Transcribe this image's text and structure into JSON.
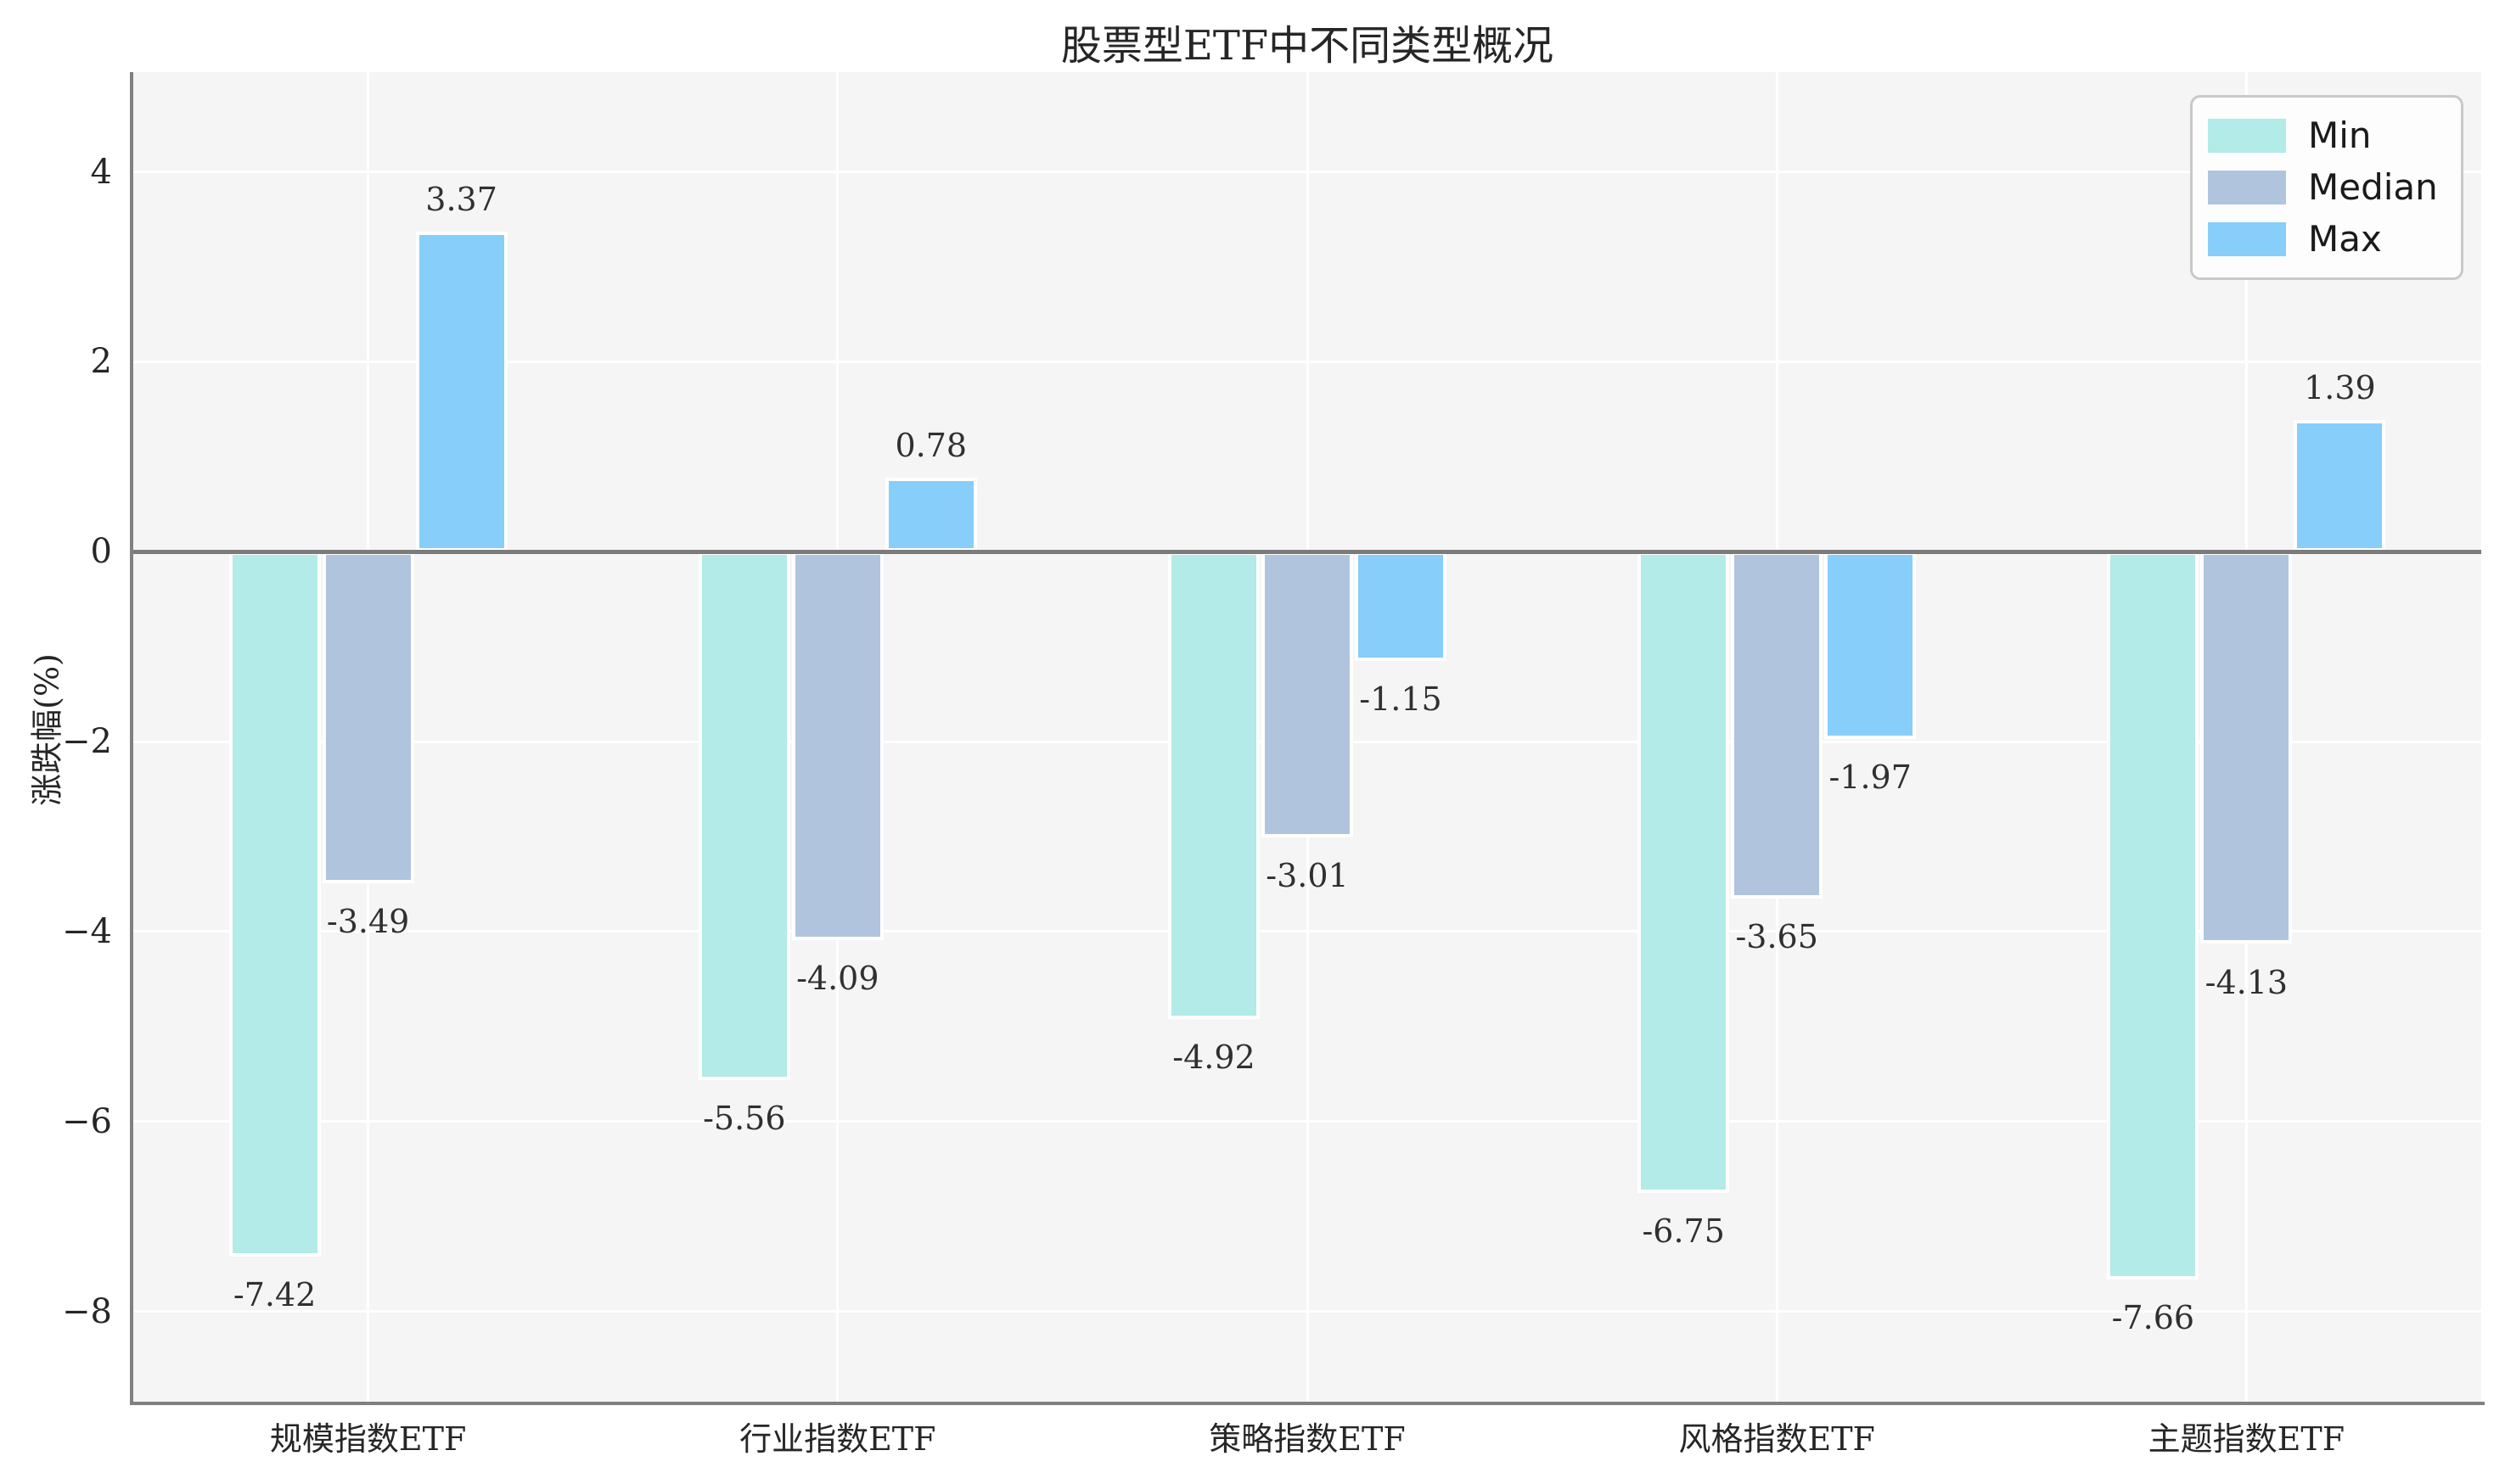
{
  "chart_data": {
    "type": "bar",
    "title": "股票型ETF中不同类型概况",
    "xlabel": "",
    "ylabel": "涨跌幅(%)",
    "categories": [
      "规模指数ETF",
      "行业指数ETF",
      "策略指数ETF",
      "风格指数ETF",
      "主题指数ETF"
    ],
    "series": [
      {
        "name": "Min",
        "color": "#b2ebe8",
        "values": [
          -7.42,
          -5.56,
          -4.92,
          -6.75,
          -7.66
        ]
      },
      {
        "name": "Median",
        "color": "#b0c4de",
        "values": [
          -3.49,
          -4.09,
          -3.01,
          -3.65,
          -4.13
        ]
      },
      {
        "name": "Max",
        "color": "#87cefa",
        "values": [
          3.37,
          0.78,
          -1.15,
          -1.97,
          1.39
        ]
      }
    ],
    "yticks": [
      4,
      2,
      0,
      -2,
      -4,
      -6,
      -8
    ],
    "ylim": [
      -8.95,
      5.05
    ],
    "grid": true,
    "legend_position": "upper right",
    "value_labels": true,
    "colors": {
      "plot_background": "#f5f5f5",
      "figure_background": "#ffffff",
      "grid_color": "#ffffff",
      "axis_color": "#808080",
      "zero_line_color": "#7b7b7b",
      "text_color": "#262626"
    }
  }
}
